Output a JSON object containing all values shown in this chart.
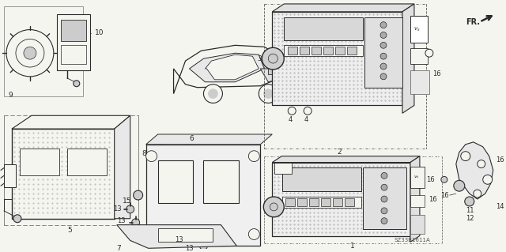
{
  "bg_color": "#f5f5f0",
  "lc": "#2a2a2a",
  "diagram_code": "SZ33B1611A",
  "fig_w": 6.4,
  "fig_h": 3.19,
  "dpi": 100
}
